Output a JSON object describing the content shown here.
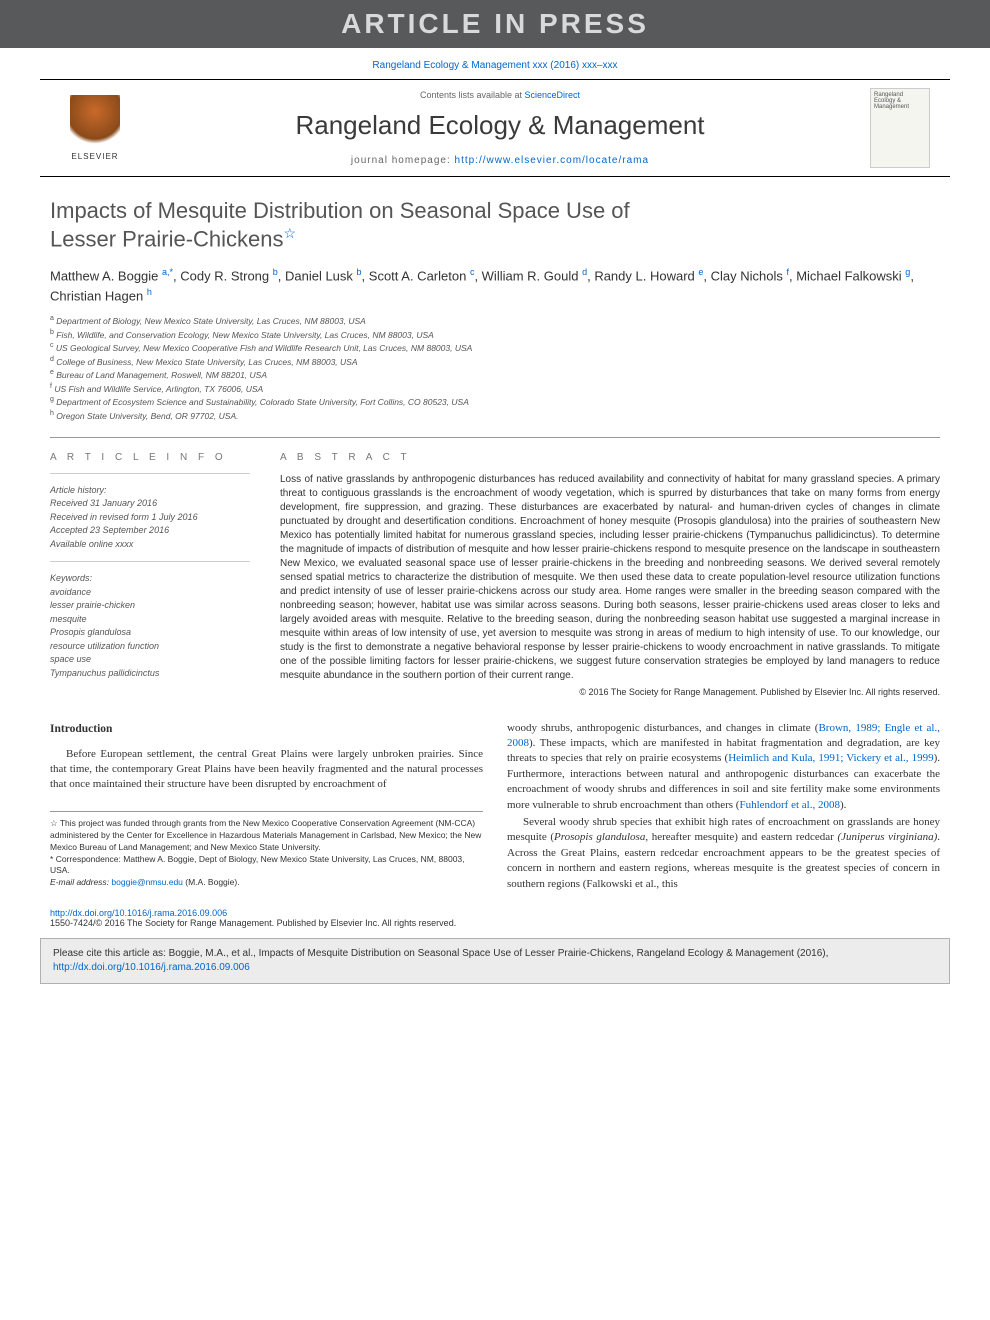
{
  "banner": "ARTICLE IN PRESS",
  "journal_ref": "Rangeland Ecology & Management xxx (2016) xxx–xxx",
  "header": {
    "contents_prefix": "Contents lists available at ",
    "contents_link": "ScienceDirect",
    "journal_title": "Rangeland Ecology & Management",
    "homepage_prefix": "journal homepage: ",
    "homepage_url": "http://www.elsevier.com/locate/rama",
    "elsevier": "ELSEVIER",
    "cover_text": "Rangeland Ecology & Management"
  },
  "title_line1": "Impacts of Mesquite Distribution on Seasonal Space Use of",
  "title_line2": "Lesser Prairie-Chickens",
  "authors_html": "Matthew A. Boggie <sup>a,*</sup>, Cody R. Strong <sup>b</sup>, Daniel Lusk <sup>b</sup>, Scott A. Carleton <sup>c</sup>, William R. Gould <sup>d</sup>, Randy L. Howard <sup>e</sup>, Clay Nichols <sup>f</sup>, Michael Falkowski <sup>g</sup>, Christian Hagen <sup>h</sup>",
  "affiliations": [
    {
      "sup": "a",
      "text": "Department of Biology, New Mexico State University, Las Cruces, NM 88003, USA"
    },
    {
      "sup": "b",
      "text": "Fish, Wildlife, and Conservation Ecology, New Mexico State University, Las Cruces, NM 88003, USA"
    },
    {
      "sup": "c",
      "text": "US Geological Survey, New Mexico Cooperative Fish and Wildlife Research Unit, Las Cruces, NM 88003, USA"
    },
    {
      "sup": "d",
      "text": "College of Business, New Mexico State University, Las Cruces, NM 88003, USA"
    },
    {
      "sup": "e",
      "text": "Bureau of Land Management, Roswell, NM 88201, USA"
    },
    {
      "sup": "f",
      "text": "US Fish and Wildlife Service, Arlington, TX 76006, USA"
    },
    {
      "sup": "g",
      "text": "Department of Ecosystem Science and Sustainability, Colorado State University, Fort Collins, CO 80523, USA"
    },
    {
      "sup": "h",
      "text": "Oregon State University, Bend, OR 97702, USA."
    }
  ],
  "info": {
    "heading": "A R T I C L E   I N F O",
    "history_label": "Article history:",
    "history": [
      "Received 31 January 2016",
      "Received in revised form 1 July 2016",
      "Accepted 23 September 2016",
      "Available online xxxx"
    ],
    "keywords_label": "Keywords:",
    "keywords": [
      "avoidance",
      "lesser prairie-chicken",
      "mesquite",
      "Prosopis glandulosa",
      "resource utilization function",
      "space use",
      "Tympanuchus pallidicinctus"
    ]
  },
  "abstract": {
    "heading": "A B S T R A C T",
    "text": "Loss of native grasslands by anthropogenic disturbances has reduced availability and connectivity of habitat for many grassland species. A primary threat to contiguous grasslands is the encroachment of woody vegetation, which is spurred by disturbances that take on many forms from energy development, fire suppression, and grazing. These disturbances are exacerbated by natural- and human-driven cycles of changes in climate punctuated by drought and desertification conditions. Encroachment of honey mesquite (Prosopis glandulosa) into the prairies of southeastern New Mexico has potentially limited habitat for numerous grassland species, including lesser prairie-chickens (Tympanuchus pallidicinctus). To determine the magnitude of impacts of distribution of mesquite and how lesser prairie-chickens respond to mesquite presence on the landscape in southeastern New Mexico, we evaluated seasonal space use of lesser prairie-chickens in the breeding and nonbreeding seasons. We derived several remotely sensed spatial metrics to characterize the distribution of mesquite. We then used these data to create population-level resource utilization functions and predict intensity of use of lesser prairie-chickens across our study area. Home ranges were smaller in the breeding season compared with the nonbreeding season; however, habitat use was similar across seasons. During both seasons, lesser prairie-chickens used areas closer to leks and largely avoided areas with mesquite. Relative to the breeding season, during the nonbreeding season habitat use suggested a marginal increase in mesquite within areas of low intensity of use, yet aversion to mesquite was strong in areas of medium to high intensity of use. To our knowledge, our study is the first to demonstrate a negative behavioral response by lesser prairie-chickens to woody encroachment in native grasslands. To mitigate one of the possible limiting factors for lesser prairie-chickens, we suggest future conservation strategies be employed by land managers to reduce mesquite abundance in the southern portion of their current range.",
    "copyright": "© 2016 The Society for Range Management. Published by Elsevier Inc. All rights reserved."
  },
  "intro": {
    "heading": "Introduction",
    "p1": "Before European settlement, the central Great Plains were largely unbroken prairies. Since that time, the contemporary Great Plains have been heavily fragmented and the natural processes that once maintained their structure have been disrupted by encroachment of",
    "p2a": "woody shrubs, anthropogenic disturbances, and changes in climate (",
    "p2link": "Brown, 1989; Engle et al., 2008",
    "p2b": "). These impacts, which are manifested in habitat fragmentation and degradation, are key threats to species that rely on prairie ecosystems (",
    "p2link2": "Heimlich and Kula, 1991; Vickery et al., 1999",
    "p2c": "). Furthermore, interactions between natural and anthropogenic disturbances can exacerbate the encroachment of woody shrubs and differences in soil and site fertility make some environments more vulnerable to shrub encroachment than others (",
    "p2link3": "Fuhlendorf et al., 2008",
    "p2d": ").",
    "p3a": "Several woody shrub species that exhibit high rates of encroachment on grasslands are honey mesquite (",
    "p3s1": "Prosopis glandulosa",
    "p3b": ", hereafter mesquite) and eastern redcedar ",
    "p3s2": "(Juniperus virginiana)",
    "p3c": ". Across the Great Plains, eastern redcedar encroachment appears to be the greatest species of concern in northern and eastern regions, whereas mesquite is the greatest species of concern in southern regions (Falkowski et al., this"
  },
  "footnotes": {
    "funding_sym": "☆",
    "funding": "This project was funded through grants from the New Mexico Cooperative Conservation Agreement (NM-CCA) administered by the Center for Excellence in Hazardous Materials Management in Carlsbad, New Mexico; the New Mexico Bureau of Land Management; and New Mexico State University.",
    "corr_sym": "*",
    "corr": "Correspondence: Matthew A. Boggie, Dept of Biology, New Mexico State University, Las Cruces, NM, 88003, USA.",
    "email_label": "E-mail address: ",
    "email": "boggie@nmsu.edu",
    "email_suffix": " (M.A. Boggie)."
  },
  "doi": {
    "url": "http://dx.doi.org/10.1016/j.rama.2016.09.006",
    "issn_line": "1550-7424/© 2016 The Society for Range Management. Published by Elsevier Inc. All rights reserved."
  },
  "citebox": {
    "prefix": "Please cite this article as: Boggie, M.A., et al., Impacts of Mesquite Distribution on Seasonal Space Use of Lesser Prairie-Chickens, Rangeland Ecology & Management (2016), ",
    "url": "http://dx.doi.org/10.1016/j.rama.2016.09.006"
  }
}
